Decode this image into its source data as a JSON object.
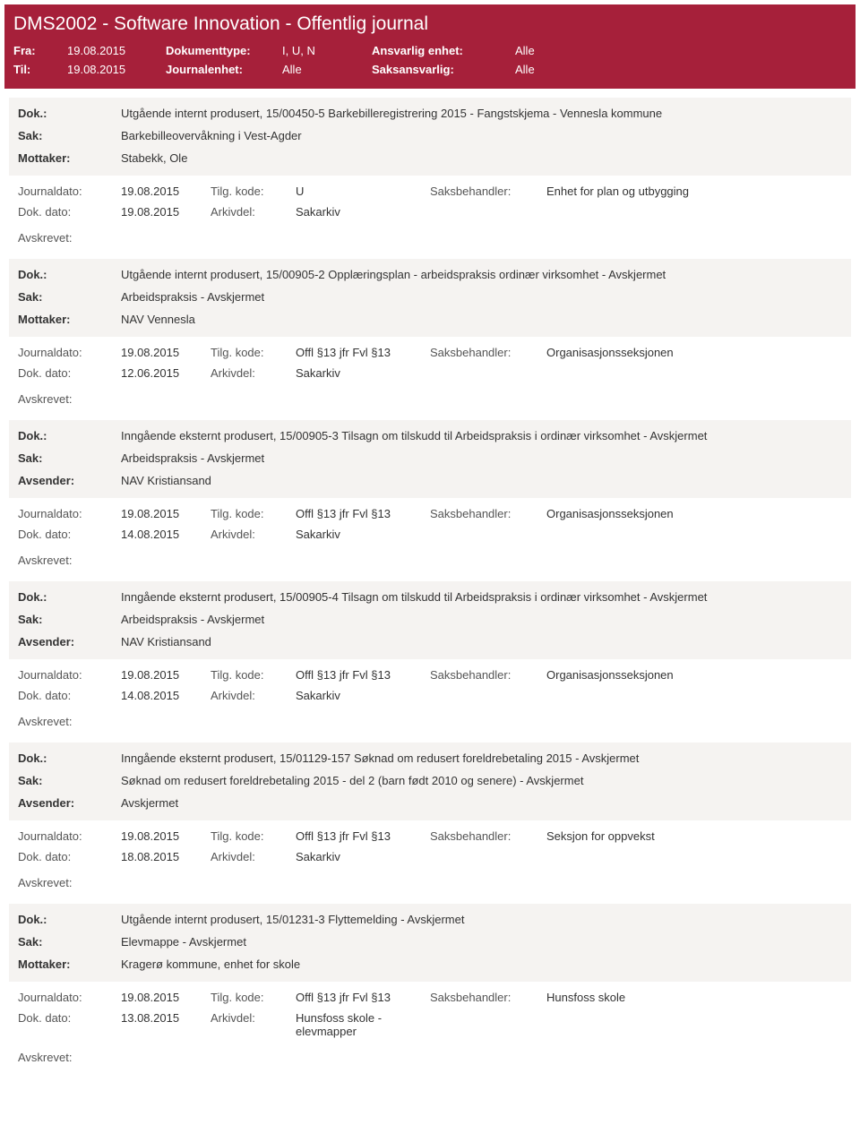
{
  "header": {
    "title": "DMS2002 - Software Innovation - Offentlig journal",
    "fra_label": "Fra:",
    "fra_value": "19.08.2015",
    "til_label": "Til:",
    "til_value": "19.08.2015",
    "doktype_label": "Dokumenttype:",
    "doktype_value": "I, U, N",
    "journalenhet_label": "Journalenhet:",
    "journalenhet_value": "Alle",
    "ansvarlig_label": "Ansvarlig enhet:",
    "ansvarlig_value": "Alle",
    "saksansvarlig_label": "Saksansvarlig:",
    "saksansvarlig_value": "Alle"
  },
  "labels": {
    "dok": "Dok.:",
    "sak": "Sak:",
    "mottaker": "Mottaker:",
    "avsender": "Avsender:",
    "journaldato": "Journaldato:",
    "dokdato": "Dok. dato:",
    "tilgkode": "Tilg. kode:",
    "arkivdel": "Arkivdel:",
    "saksbehandler": "Saksbehandler:",
    "avskrevet": "Avskrevet:"
  },
  "entries": [
    {
      "dok": "Utgående internt produsert, 15/00450-5 Barkebilleregistrering 2015 - Fangstskjema - Vennesla kommune",
      "sak": "Barkebilleovervåkning i Vest-Agder",
      "party_label": "Mottaker:",
      "party": "Stabekk, Ole",
      "journaldato": "19.08.2015",
      "tilgkode": "U",
      "saksbehandler": "Enhet for plan og utbygging",
      "dokdato": "19.08.2015",
      "arkivdel": "Sakarkiv"
    },
    {
      "dok": "Utgående internt produsert, 15/00905-2 Opplæringsplan - arbeidspraksis ordinær virksomhet - Avskjermet",
      "sak": "Arbeidspraksis - Avskjermet",
      "party_label": "Mottaker:",
      "party": "NAV Vennesla",
      "journaldato": "19.08.2015",
      "tilgkode": "Offl §13 jfr Fvl §13",
      "saksbehandler": "Organisasjonsseksjonen",
      "dokdato": "12.06.2015",
      "arkivdel": "Sakarkiv"
    },
    {
      "dok": "Inngående eksternt produsert, 15/00905-3 Tilsagn om tilskudd til Arbeidspraksis i ordinær virksomhet - Avskjermet",
      "sak": "Arbeidspraksis - Avskjermet",
      "party_label": "Avsender:",
      "party": "NAV Kristiansand",
      "journaldato": "19.08.2015",
      "tilgkode": "Offl §13 jfr Fvl §13",
      "saksbehandler": "Organisasjonsseksjonen",
      "dokdato": "14.08.2015",
      "arkivdel": "Sakarkiv"
    },
    {
      "dok": "Inngående eksternt produsert, 15/00905-4 Tilsagn om tilskudd til Arbeidspraksis i ordinær virksomhet - Avskjermet",
      "sak": "Arbeidspraksis - Avskjermet",
      "party_label": "Avsender:",
      "party": "NAV Kristiansand",
      "journaldato": "19.08.2015",
      "tilgkode": "Offl §13 jfr Fvl §13",
      "saksbehandler": "Organisasjonsseksjonen",
      "dokdato": "14.08.2015",
      "arkivdel": "Sakarkiv"
    },
    {
      "dok": "Inngående eksternt produsert, 15/01129-157 Søknad om redusert foreldrebetaling 2015 - Avskjermet",
      "sak": "Søknad om redusert foreldrebetaling 2015 - del 2 (barn født 2010 og senere) - Avskjermet",
      "party_label": "Avsender:",
      "party": "Avskjermet",
      "journaldato": "19.08.2015",
      "tilgkode": "Offl §13 jfr Fvl §13",
      "saksbehandler": "Seksjon for oppvekst",
      "dokdato": "18.08.2015",
      "arkivdel": "Sakarkiv"
    },
    {
      "dok": "Utgående internt produsert, 15/01231-3 Flyttemelding - Avskjermet",
      "sak": "Elevmappe - Avskjermet",
      "party_label": "Mottaker:",
      "party": "Kragerø kommune, enhet for skole",
      "journaldato": "19.08.2015",
      "tilgkode": "Offl §13 jfr Fvl §13",
      "saksbehandler": "Hunsfoss skole",
      "dokdato": "13.08.2015",
      "arkivdel": "Hunsfoss skole - elevmapper"
    }
  ]
}
